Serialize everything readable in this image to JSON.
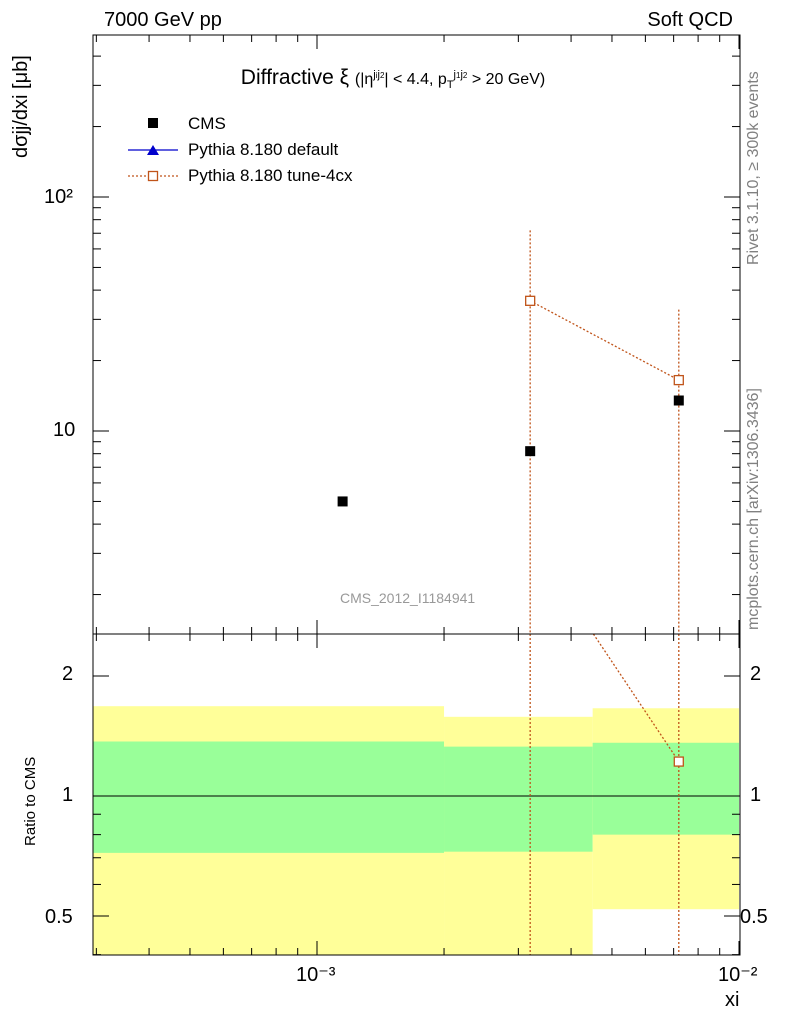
{
  "header": {
    "left": "7000 GeV pp",
    "right": "Soft QCD"
  },
  "side_labels": {
    "rivet": "Rivet 3.1.10, ≥ 300k events",
    "source": "mcplots.cern.ch [arXiv:1306.3436]"
  },
  "title": {
    "main": "Diffractive ξ",
    "cut_pre": "(|η",
    "eta_sup": "j",
    "eta_sub": "i",
    "eta_sup2": "j",
    "eta_sub2": "2",
    "cut_mid": "| < 4.4, p",
    "pt_sub": "T",
    "pt_sup": "j",
    "pt_sup_sub": "1",
    "pt_sup2": "j",
    "pt_sup2_sub": "2",
    "cut_post": "> 20 GeV)"
  },
  "watermark": "CMS_2012_I1184941",
  "legend": {
    "cms": "CMS",
    "default": "Pythia 8.180 default",
    "tune": "Pythia 8.180 tune-4cx"
  },
  "colors": {
    "cms": "#000000",
    "default": "#0000cc",
    "tune": "#c0541a",
    "band_inner": "#99ff99",
    "band_outer": "#ffff99"
  },
  "chart_data": [
    {
      "type": "scatter",
      "panel": "main",
      "ylabel": "dσjj/dxi [μb]",
      "yscale": "log",
      "xscale": "log",
      "y_ticks": [
        "10",
        "10²"
      ],
      "series": [
        {
          "name": "CMS",
          "points": [
            {
              "x": 0.00115,
              "y": 5.0
            },
            {
              "x": 0.0032,
              "y": 8.2
            },
            {
              "x": 0.0072,
              "y": 13.5
            }
          ]
        },
        {
          "name": "Pythia 8.180 default",
          "points": []
        },
        {
          "name": "Pythia 8.180 tune-4cx",
          "points": [
            {
              "x": 0.0032,
              "y": 36.0,
              "err_low": 0.1,
              "err_high": 72.0
            },
            {
              "x": 0.0072,
              "y": 16.5,
              "err_low": 0.1,
              "err_high": 33.0
            }
          ]
        }
      ]
    },
    {
      "type": "area",
      "panel": "ratio",
      "ylabel": "Ratio to CMS",
      "xlabel": "xi",
      "x_ticks": [
        "10⁻³",
        "10⁻²"
      ],
      "y_ticks": [
        "0.5",
        "1",
        "2"
      ],
      "bands": [
        {
          "x_low": 0.00028,
          "x_high": 0.002,
          "inner": [
            0.72,
            1.37
          ],
          "outer": [
            0.35,
            1.68
          ]
        },
        {
          "x_low": 0.002,
          "x_high": 0.0045,
          "inner": [
            0.725,
            1.33
          ],
          "outer": [
            0.35,
            1.58
          ]
        },
        {
          "x_low": 0.0045,
          "x_high": 0.01,
          "inner": [
            0.8,
            1.36
          ],
          "outer": [
            0.52,
            1.66
          ]
        }
      ],
      "series": [
        {
          "name": "Pythia 8.180 tune-4cx",
          "points": [
            {
              "x": 0.0032,
              "y": 4.4
            },
            {
              "x": 0.0072,
              "y": 1.22
            }
          ]
        }
      ]
    }
  ]
}
